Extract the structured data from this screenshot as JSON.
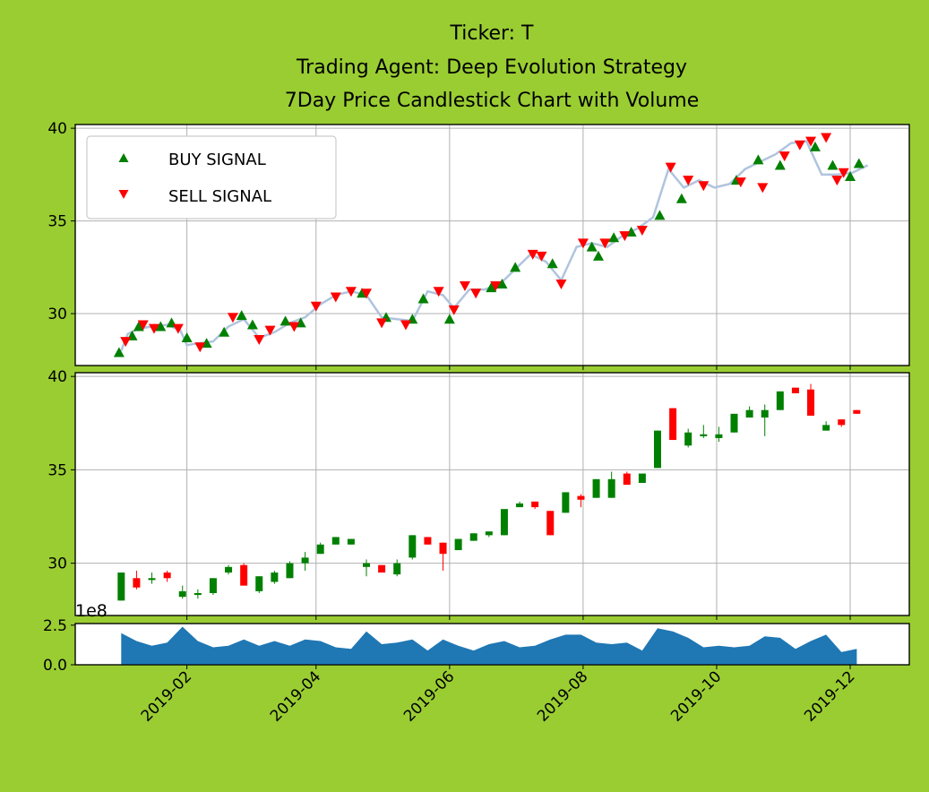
{
  "chart_data": {
    "type": "candlestick",
    "title_lines": [
      "Ticker: T",
      "Trading Agent: Deep Evolution Strategy",
      "7Day Price Candlestick Chart with Volume"
    ],
    "colors": {
      "background": "#9acd32",
      "buy": "#008000",
      "sell": "#ff0000",
      "close_line": "#b0c4de",
      "volume": "#1f77b4",
      "up_candle": "#008000",
      "down_candle": "#ff0000"
    },
    "x_range": [
      "2018-12-12",
      "2019-12-28"
    ],
    "x_ticks": [
      "2019-02",
      "2019-04",
      "2019-06",
      "2019-08",
      "2019-10",
      "2019-12"
    ],
    "x_tick_dates": [
      "2019-02-01",
      "2019-04-01",
      "2019-06-01",
      "2019-08-01",
      "2019-10-01",
      "2019-12-01"
    ],
    "legend": {
      "placement": "upper-left",
      "entries": [
        "BUY SIGNAL",
        "SELL SIGNAL"
      ]
    },
    "price_panel": {
      "ylim": [
        27.2,
        40.2
      ],
      "yticks": [
        "30",
        "35",
        "40"
      ],
      "grid": true,
      "close_line": [
        [
          "2019-01-02",
          28.0
        ],
        [
          "2019-01-05",
          28.9
        ],
        [
          "2019-01-10",
          29.2
        ],
        [
          "2019-01-16",
          29.3
        ],
        [
          "2019-01-23",
          29.4
        ],
        [
          "2019-01-29",
          29.1
        ],
        [
          "2019-02-01",
          28.3
        ],
        [
          "2019-02-06",
          28.4
        ],
        [
          "2019-02-13",
          28.5
        ],
        [
          "2019-02-20",
          29.3
        ],
        [
          "2019-02-27",
          29.7
        ],
        [
          "2019-03-06",
          28.7
        ],
        [
          "2019-03-13",
          29.0
        ],
        [
          "2019-03-20",
          29.5
        ],
        [
          "2019-03-27",
          29.8
        ],
        [
          "2019-04-03",
          30.5
        ],
        [
          "2019-04-10",
          31.0
        ],
        [
          "2019-04-17",
          31.2
        ],
        [
          "2019-04-24",
          31.0
        ],
        [
          "2019-05-01",
          29.8
        ],
        [
          "2019-05-08",
          29.7
        ],
        [
          "2019-05-15",
          29.6
        ],
        [
          "2019-05-22",
          31.2
        ],
        [
          "2019-05-29",
          31.0
        ],
        [
          "2019-06-03",
          30.3
        ],
        [
          "2019-06-10",
          31.3
        ],
        [
          "2019-06-17",
          31.3
        ],
        [
          "2019-06-24",
          31.6
        ],
        [
          "2019-07-01",
          32.4
        ],
        [
          "2019-07-08",
          33.2
        ],
        [
          "2019-07-15",
          32.8
        ],
        [
          "2019-07-22",
          31.8
        ],
        [
          "2019-07-29",
          33.6
        ],
        [
          "2019-08-05",
          33.8
        ],
        [
          "2019-08-12",
          33.6
        ],
        [
          "2019-08-19",
          34.2
        ],
        [
          "2019-08-26",
          34.6
        ],
        [
          "2019-09-02",
          35.2
        ],
        [
          "2019-09-09",
          37.8
        ],
        [
          "2019-09-16",
          36.8
        ],
        [
          "2019-09-23",
          37.2
        ],
        [
          "2019-09-30",
          36.8
        ],
        [
          "2019-10-07",
          37.0
        ],
        [
          "2019-10-14",
          37.8
        ],
        [
          "2019-10-21",
          38.2
        ],
        [
          "2019-10-28",
          38.6
        ],
        [
          "2019-11-04",
          39.2
        ],
        [
          "2019-11-11",
          39.3
        ],
        [
          "2019-11-18",
          37.5
        ],
        [
          "2019-11-25",
          37.5
        ],
        [
          "2019-12-02",
          37.6
        ],
        [
          "2019-12-09",
          38.0
        ]
      ],
      "buy_signals": [
        [
          "2019-01-01",
          27.9
        ],
        [
          "2019-01-07",
          28.8
        ],
        [
          "2019-01-10",
          29.3
        ],
        [
          "2019-01-20",
          29.3
        ],
        [
          "2019-01-25",
          29.5
        ],
        [
          "2019-02-01",
          28.7
        ],
        [
          "2019-02-10",
          28.4
        ],
        [
          "2019-02-18",
          29.0
        ],
        [
          "2019-02-26",
          29.9
        ],
        [
          "2019-03-03",
          29.4
        ],
        [
          "2019-03-18",
          29.6
        ],
        [
          "2019-03-25",
          29.5
        ],
        [
          "2019-04-22",
          31.1
        ],
        [
          "2019-05-03",
          29.8
        ],
        [
          "2019-05-15",
          29.7
        ],
        [
          "2019-05-20",
          30.8
        ],
        [
          "2019-06-01",
          29.7
        ],
        [
          "2019-06-20",
          31.4
        ],
        [
          "2019-06-25",
          31.6
        ],
        [
          "2019-07-01",
          32.5
        ],
        [
          "2019-07-18",
          32.7
        ],
        [
          "2019-08-05",
          33.6
        ],
        [
          "2019-08-08",
          33.1
        ],
        [
          "2019-08-15",
          34.1
        ],
        [
          "2019-08-23",
          34.4
        ],
        [
          "2019-09-05",
          35.3
        ],
        [
          "2019-09-15",
          36.2
        ],
        [
          "2019-10-10",
          37.2
        ],
        [
          "2019-10-20",
          38.3
        ],
        [
          "2019-10-30",
          38.0
        ],
        [
          "2019-11-15",
          39.0
        ],
        [
          "2019-11-23",
          38.0
        ],
        [
          "2019-12-01",
          37.4
        ],
        [
          "2019-12-05",
          38.1
        ]
      ],
      "sell_signals": [
        [
          "2019-01-04",
          28.5
        ],
        [
          "2019-01-12",
          29.4
        ],
        [
          "2019-01-17",
          29.2
        ],
        [
          "2019-01-28",
          29.2
        ],
        [
          "2019-02-07",
          28.2
        ],
        [
          "2019-02-22",
          29.8
        ],
        [
          "2019-03-06",
          28.6
        ],
        [
          "2019-03-11",
          29.1
        ],
        [
          "2019-03-22",
          29.3
        ],
        [
          "2019-04-01",
          30.4
        ],
        [
          "2019-04-10",
          30.9
        ],
        [
          "2019-04-17",
          31.2
        ],
        [
          "2019-04-24",
          31.1
        ],
        [
          "2019-05-01",
          29.5
        ],
        [
          "2019-05-12",
          29.4
        ],
        [
          "2019-05-27",
          31.2
        ],
        [
          "2019-06-03",
          30.2
        ],
        [
          "2019-06-08",
          31.5
        ],
        [
          "2019-06-13",
          31.1
        ],
        [
          "2019-06-22",
          31.5
        ],
        [
          "2019-07-09",
          33.2
        ],
        [
          "2019-07-13",
          33.1
        ],
        [
          "2019-07-22",
          31.6
        ],
        [
          "2019-08-01",
          33.8
        ],
        [
          "2019-08-11",
          33.8
        ],
        [
          "2019-08-20",
          34.2
        ],
        [
          "2019-08-28",
          34.5
        ],
        [
          "2019-09-10",
          37.9
        ],
        [
          "2019-09-18",
          37.2
        ],
        [
          "2019-09-25",
          36.9
        ],
        [
          "2019-10-12",
          37.1
        ],
        [
          "2019-10-22",
          36.8
        ],
        [
          "2019-11-01",
          38.5
        ],
        [
          "2019-11-08",
          39.1
        ],
        [
          "2019-11-13",
          39.3
        ],
        [
          "2019-11-20",
          39.5
        ],
        [
          "2019-11-25",
          37.2
        ],
        [
          "2019-11-28",
          37.6
        ]
      ]
    },
    "candle_panel": {
      "ylim": [
        27.2,
        40.2
      ],
      "yticks": [
        "30",
        "35",
        "40"
      ],
      "grid": true,
      "candles": [
        [
          "2019-01-02",
          28.0,
          29.5,
          28.0,
          29.5
        ],
        [
          "2019-01-09",
          29.2,
          29.6,
          28.6,
          28.7
        ],
        [
          "2019-01-16",
          29.1,
          29.5,
          28.9,
          29.2
        ],
        [
          "2019-01-23",
          29.5,
          29.6,
          29.0,
          29.2
        ],
        [
          "2019-01-30",
          28.2,
          28.8,
          28.1,
          28.5
        ],
        [
          "2019-02-06",
          28.3,
          28.6,
          28.1,
          28.4
        ],
        [
          "2019-02-13",
          28.4,
          29.2,
          28.3,
          29.2
        ],
        [
          "2019-02-20",
          29.5,
          29.9,
          29.4,
          29.8
        ],
        [
          "2019-02-27",
          29.9,
          30.0,
          28.8,
          28.8
        ],
        [
          "2019-03-06",
          28.5,
          29.3,
          28.4,
          29.3
        ],
        [
          "2019-03-13",
          29.0,
          29.6,
          28.9,
          29.5
        ],
        [
          "2019-03-20",
          29.2,
          30.1,
          29.2,
          30.0
        ],
        [
          "2019-03-27",
          30.0,
          30.6,
          29.6,
          30.3
        ],
        [
          "2019-04-03",
          30.5,
          31.1,
          30.5,
          31.0
        ],
        [
          "2019-04-10",
          31.0,
          31.4,
          31.0,
          31.4
        ],
        [
          "2019-04-17",
          31.0,
          31.3,
          31.0,
          31.3
        ],
        [
          "2019-04-24",
          29.8,
          30.2,
          29.3,
          30.0
        ],
        [
          "2019-05-01",
          29.9,
          29.9,
          29.5,
          29.5
        ],
        [
          "2019-05-08",
          29.4,
          30.2,
          29.3,
          30.0
        ],
        [
          "2019-05-15",
          30.3,
          31.5,
          30.2,
          31.5
        ],
        [
          "2019-05-22",
          31.4,
          31.4,
          31.0,
          31.0
        ],
        [
          "2019-05-29",
          31.1,
          31.1,
          29.6,
          30.5
        ],
        [
          "2019-06-05",
          30.7,
          31.3,
          30.7,
          31.3
        ],
        [
          "2019-06-12",
          31.2,
          31.6,
          31.2,
          31.6
        ],
        [
          "2019-06-19",
          31.5,
          31.7,
          31.4,
          31.7
        ],
        [
          "2019-06-26",
          31.5,
          32.9,
          31.5,
          32.9
        ],
        [
          "2019-07-03",
          33.0,
          33.3,
          33.0,
          33.2
        ],
        [
          "2019-07-10",
          33.3,
          33.3,
          32.9,
          33.0
        ],
        [
          "2019-07-17",
          32.8,
          32.8,
          31.5,
          31.5
        ],
        [
          "2019-07-24",
          32.7,
          33.8,
          32.7,
          33.8
        ],
        [
          "2019-07-31",
          33.6,
          33.7,
          33.0,
          33.4
        ],
        [
          "2019-08-07",
          33.5,
          34.5,
          33.5,
          34.5
        ],
        [
          "2019-08-14",
          33.5,
          34.9,
          33.5,
          34.5
        ],
        [
          "2019-08-21",
          34.8,
          34.9,
          34.2,
          34.2
        ],
        [
          "2019-08-28",
          34.3,
          34.8,
          34.3,
          34.8
        ],
        [
          "2019-09-04",
          35.1,
          37.1,
          35.1,
          37.1
        ],
        [
          "2019-09-11",
          38.3,
          38.3,
          36.6,
          36.6
        ],
        [
          "2019-09-18",
          36.3,
          37.2,
          36.2,
          37.0
        ],
        [
          "2019-09-25",
          36.8,
          37.4,
          36.7,
          36.9
        ],
        [
          "2019-10-02",
          36.7,
          37.3,
          36.5,
          36.9
        ],
        [
          "2019-10-09",
          37.0,
          38.0,
          37.0,
          38.0
        ],
        [
          "2019-10-16",
          37.8,
          38.4,
          37.8,
          38.2
        ],
        [
          "2019-10-23",
          37.8,
          38.5,
          36.8,
          38.2
        ],
        [
          "2019-10-30",
          38.2,
          39.2,
          38.2,
          39.2
        ],
        [
          "2019-11-06",
          39.4,
          39.4,
          39.1,
          39.1
        ],
        [
          "2019-11-13",
          39.3,
          39.6,
          37.9,
          37.9
        ],
        [
          "2019-11-20",
          37.1,
          37.6,
          37.1,
          37.4
        ],
        [
          "2019-11-27",
          37.7,
          37.7,
          37.3,
          37.4
        ],
        [
          "2019-12-04",
          38.2,
          38.2,
          38.0,
          38.0
        ]
      ]
    },
    "volume_panel": {
      "ylim": [
        0,
        2.6
      ],
      "yticks": [
        "0.0",
        "2.5"
      ],
      "scale_label": "1e8",
      "values": [
        [
          "2019-01-02",
          2.0
        ],
        [
          "2019-01-09",
          1.5
        ],
        [
          "2019-01-16",
          1.2
        ],
        [
          "2019-01-23",
          1.4
        ],
        [
          "2019-01-30",
          2.4
        ],
        [
          "2019-02-06",
          1.5
        ],
        [
          "2019-02-13",
          1.1
        ],
        [
          "2019-02-20",
          1.2
        ],
        [
          "2019-02-27",
          1.6
        ],
        [
          "2019-03-06",
          1.2
        ],
        [
          "2019-03-13",
          1.5
        ],
        [
          "2019-03-20",
          1.2
        ],
        [
          "2019-03-27",
          1.6
        ],
        [
          "2019-04-03",
          1.5
        ],
        [
          "2019-04-10",
          1.1
        ],
        [
          "2019-04-17",
          1.0
        ],
        [
          "2019-04-24",
          2.1
        ],
        [
          "2019-05-01",
          1.3
        ],
        [
          "2019-05-08",
          1.4
        ],
        [
          "2019-05-15",
          1.6
        ],
        [
          "2019-05-22",
          0.9
        ],
        [
          "2019-05-29",
          1.6
        ],
        [
          "2019-06-05",
          1.2
        ],
        [
          "2019-06-12",
          0.9
        ],
        [
          "2019-06-19",
          1.3
        ],
        [
          "2019-06-26",
          1.5
        ],
        [
          "2019-07-03",
          1.1
        ],
        [
          "2019-07-10",
          1.2
        ],
        [
          "2019-07-17",
          1.6
        ],
        [
          "2019-07-24",
          1.9
        ],
        [
          "2019-07-31",
          1.9
        ],
        [
          "2019-08-07",
          1.4
        ],
        [
          "2019-08-14",
          1.3
        ],
        [
          "2019-08-21",
          1.4
        ],
        [
          "2019-08-28",
          0.9
        ],
        [
          "2019-09-04",
          2.3
        ],
        [
          "2019-09-11",
          2.1
        ],
        [
          "2019-09-18",
          1.7
        ],
        [
          "2019-09-25",
          1.1
        ],
        [
          "2019-10-02",
          1.2
        ],
        [
          "2019-10-09",
          1.1
        ],
        [
          "2019-10-16",
          1.2
        ],
        [
          "2019-10-23",
          1.8
        ],
        [
          "2019-10-30",
          1.7
        ],
        [
          "2019-11-06",
          1.0
        ],
        [
          "2019-11-13",
          1.5
        ],
        [
          "2019-11-20",
          1.9
        ],
        [
          "2019-11-27",
          0.8
        ],
        [
          "2019-12-04",
          1.0
        ]
      ]
    }
  }
}
